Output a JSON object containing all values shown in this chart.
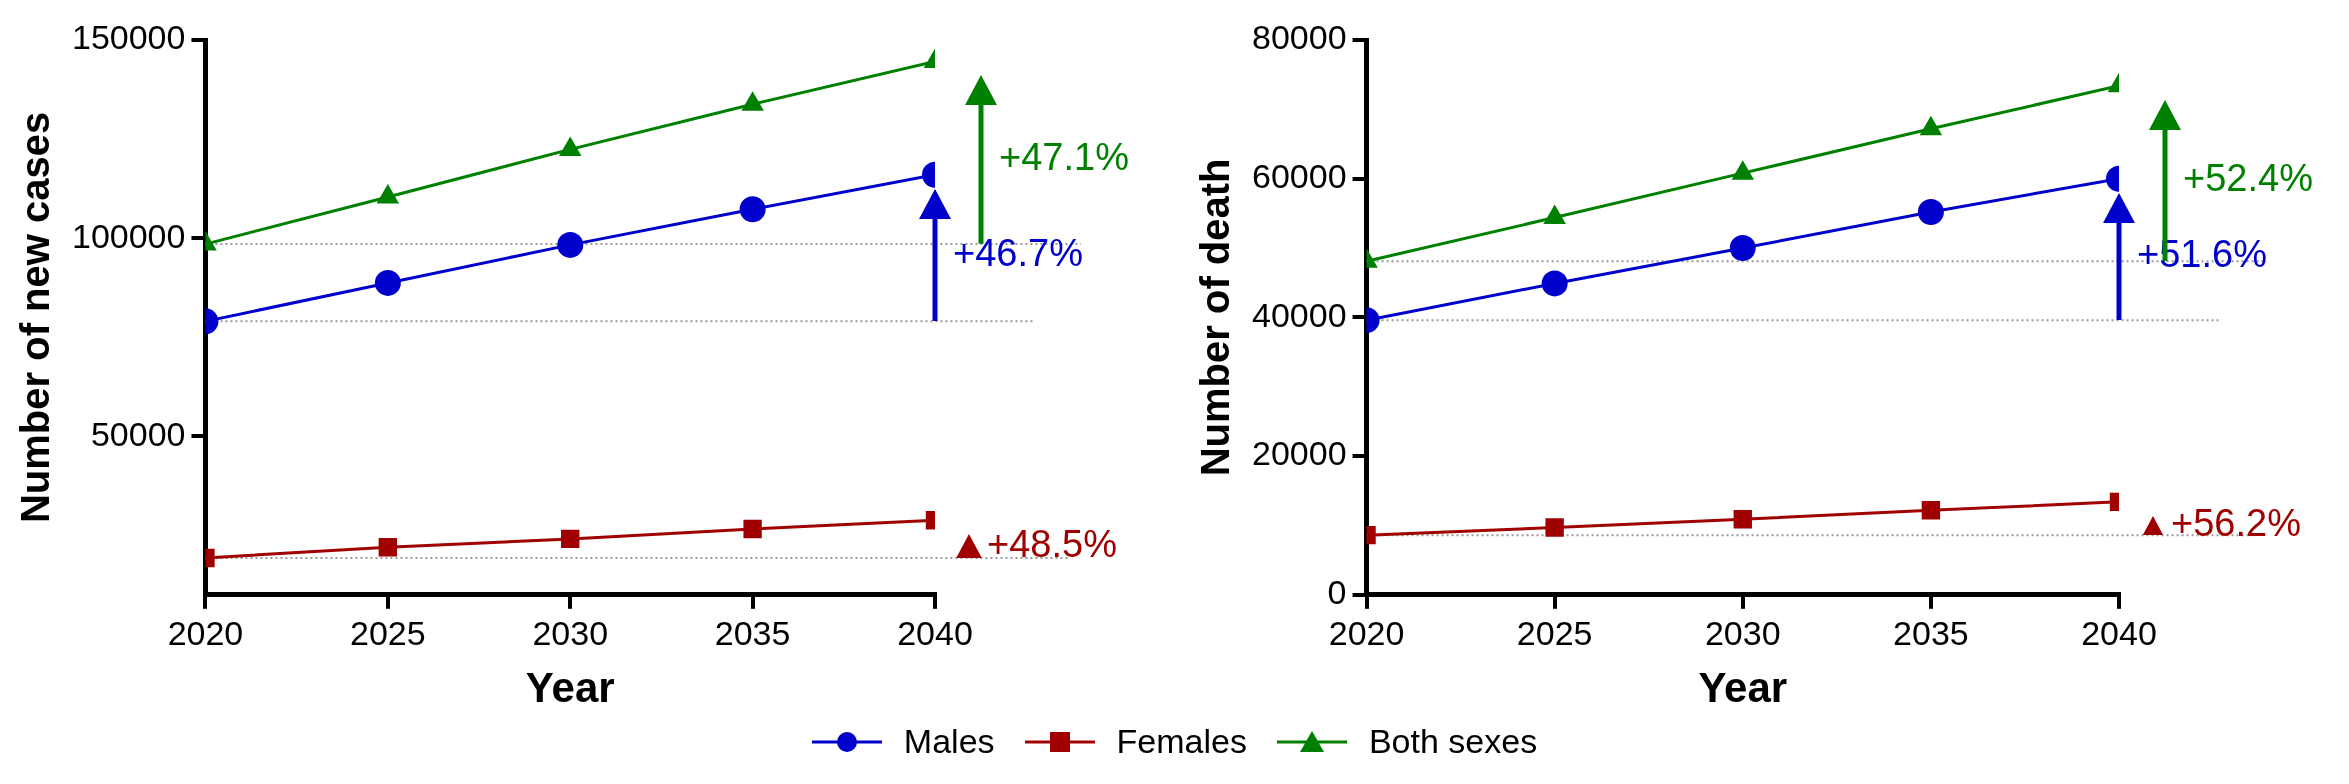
{
  "chart_data": [
    {
      "type": "line",
      "xlabel": "Year",
      "ylabel": "Number of new cases",
      "x": [
        2020,
        2025,
        2030,
        2035,
        2040
      ],
      "xlim": [
        2020,
        2040
      ],
      "xticks": [
        2020,
        2025,
        2030,
        2035,
        2040
      ],
      "ylim": [
        10000,
        150000
      ],
      "yticks": [
        50000,
        100000,
        150000
      ],
      "grid": false,
      "legend": "bottom",
      "series": [
        {
          "name": "Males",
          "color": "#0000cc",
          "marker": "circle",
          "values": [
            79000,
            88700,
            98300,
            107300,
            116000
          ]
        },
        {
          "name": "Females",
          "color": "#a00000",
          "marker": "square",
          "values": [
            19300,
            22000,
            24100,
            26600,
            28800
          ]
        },
        {
          "name": "Both sexes",
          "color": "#008000",
          "marker": "triangle",
          "values": [
            98500,
            110400,
            122400,
            133800,
            144600
          ]
        }
      ],
      "ref_lines": [
        {
          "axis": "y",
          "value": 79000,
          "color": "#999999",
          "line_style": "dotted"
        },
        {
          "axis": "y",
          "value": 19300,
          "color": "#999999",
          "line_style": "dotted"
        },
        {
          "axis": "y",
          "value": 98500,
          "color": "#999999",
          "line_style": "dotted"
        }
      ],
      "annotations": [
        "+46.7%",
        "+48.5%",
        "+47.1%"
      ]
    },
    {
      "type": "line",
      "xlabel": "Year",
      "ylabel": "Number of death",
      "x": [
        2020,
        2025,
        2030,
        2035,
        2040
      ],
      "xlim": [
        2020,
        2040
      ],
      "xticks": [
        2020,
        2025,
        2030,
        2035,
        2040
      ],
      "ylim": [
        0,
        80000
      ],
      "yticks": [
        0,
        20000,
        40000,
        60000,
        80000
      ],
      "grid": false,
      "legend": "bottom",
      "series": [
        {
          "name": "Males",
          "color": "#0000cc",
          "marker": "circle",
          "values": [
            39600,
            44900,
            50000,
            55200,
            60000
          ]
        },
        {
          "name": "Females",
          "color": "#a00000",
          "marker": "square",
          "values": [
            8600,
            9700,
            10900,
            12200,
            13400
          ]
        },
        {
          "name": "Both sexes",
          "color": "#008000",
          "marker": "triangle",
          "values": [
            48100,
            54400,
            60800,
            67200,
            73400
          ]
        }
      ],
      "ref_lines": [
        {
          "axis": "y",
          "value": 39600,
          "color": "#999999",
          "line_style": "dotted"
        },
        {
          "axis": "y",
          "value": 8600,
          "color": "#999999",
          "line_style": "dotted"
        },
        {
          "axis": "y",
          "value": 48100,
          "color": "#999999",
          "line_style": "dotted"
        }
      ],
      "annotations": [
        "+51.6%",
        "+56.2%",
        "+52.4%"
      ]
    }
  ]
}
